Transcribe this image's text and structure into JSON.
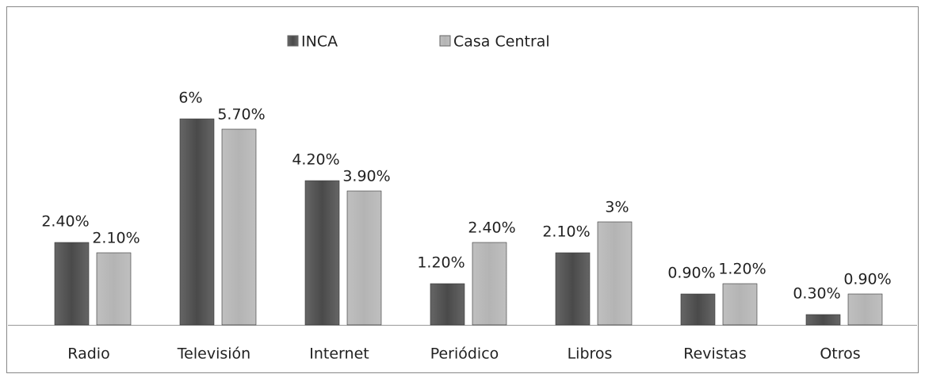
{
  "chart_data": {
    "type": "bar",
    "categories": [
      "Radio",
      "Televisión",
      "Internet",
      "Periódico",
      "Libros",
      "Revistas",
      "Otros"
    ],
    "series": [
      {
        "name": "INCA",
        "color": "#4a4a4a",
        "values": [
          2.4,
          6,
          4.2,
          1.2,
          2.1,
          0.9,
          0.3
        ],
        "value_labels": [
          "2.40%",
          "6%",
          "4.20%",
          "1.20%",
          "2.10%",
          "0.90%",
          "0.30%"
        ]
      },
      {
        "name": "Casa Central",
        "color": "#b4b4b4",
        "values": [
          2.1,
          5.7,
          3.9,
          2.4,
          3,
          1.2,
          0.9
        ],
        "value_labels": [
          "2.10%",
          "5.70%",
          "3.90%",
          "2.40%",
          "3%",
          "1.20%",
          "0.90%"
        ]
      }
    ],
    "legend": "top"
  }
}
